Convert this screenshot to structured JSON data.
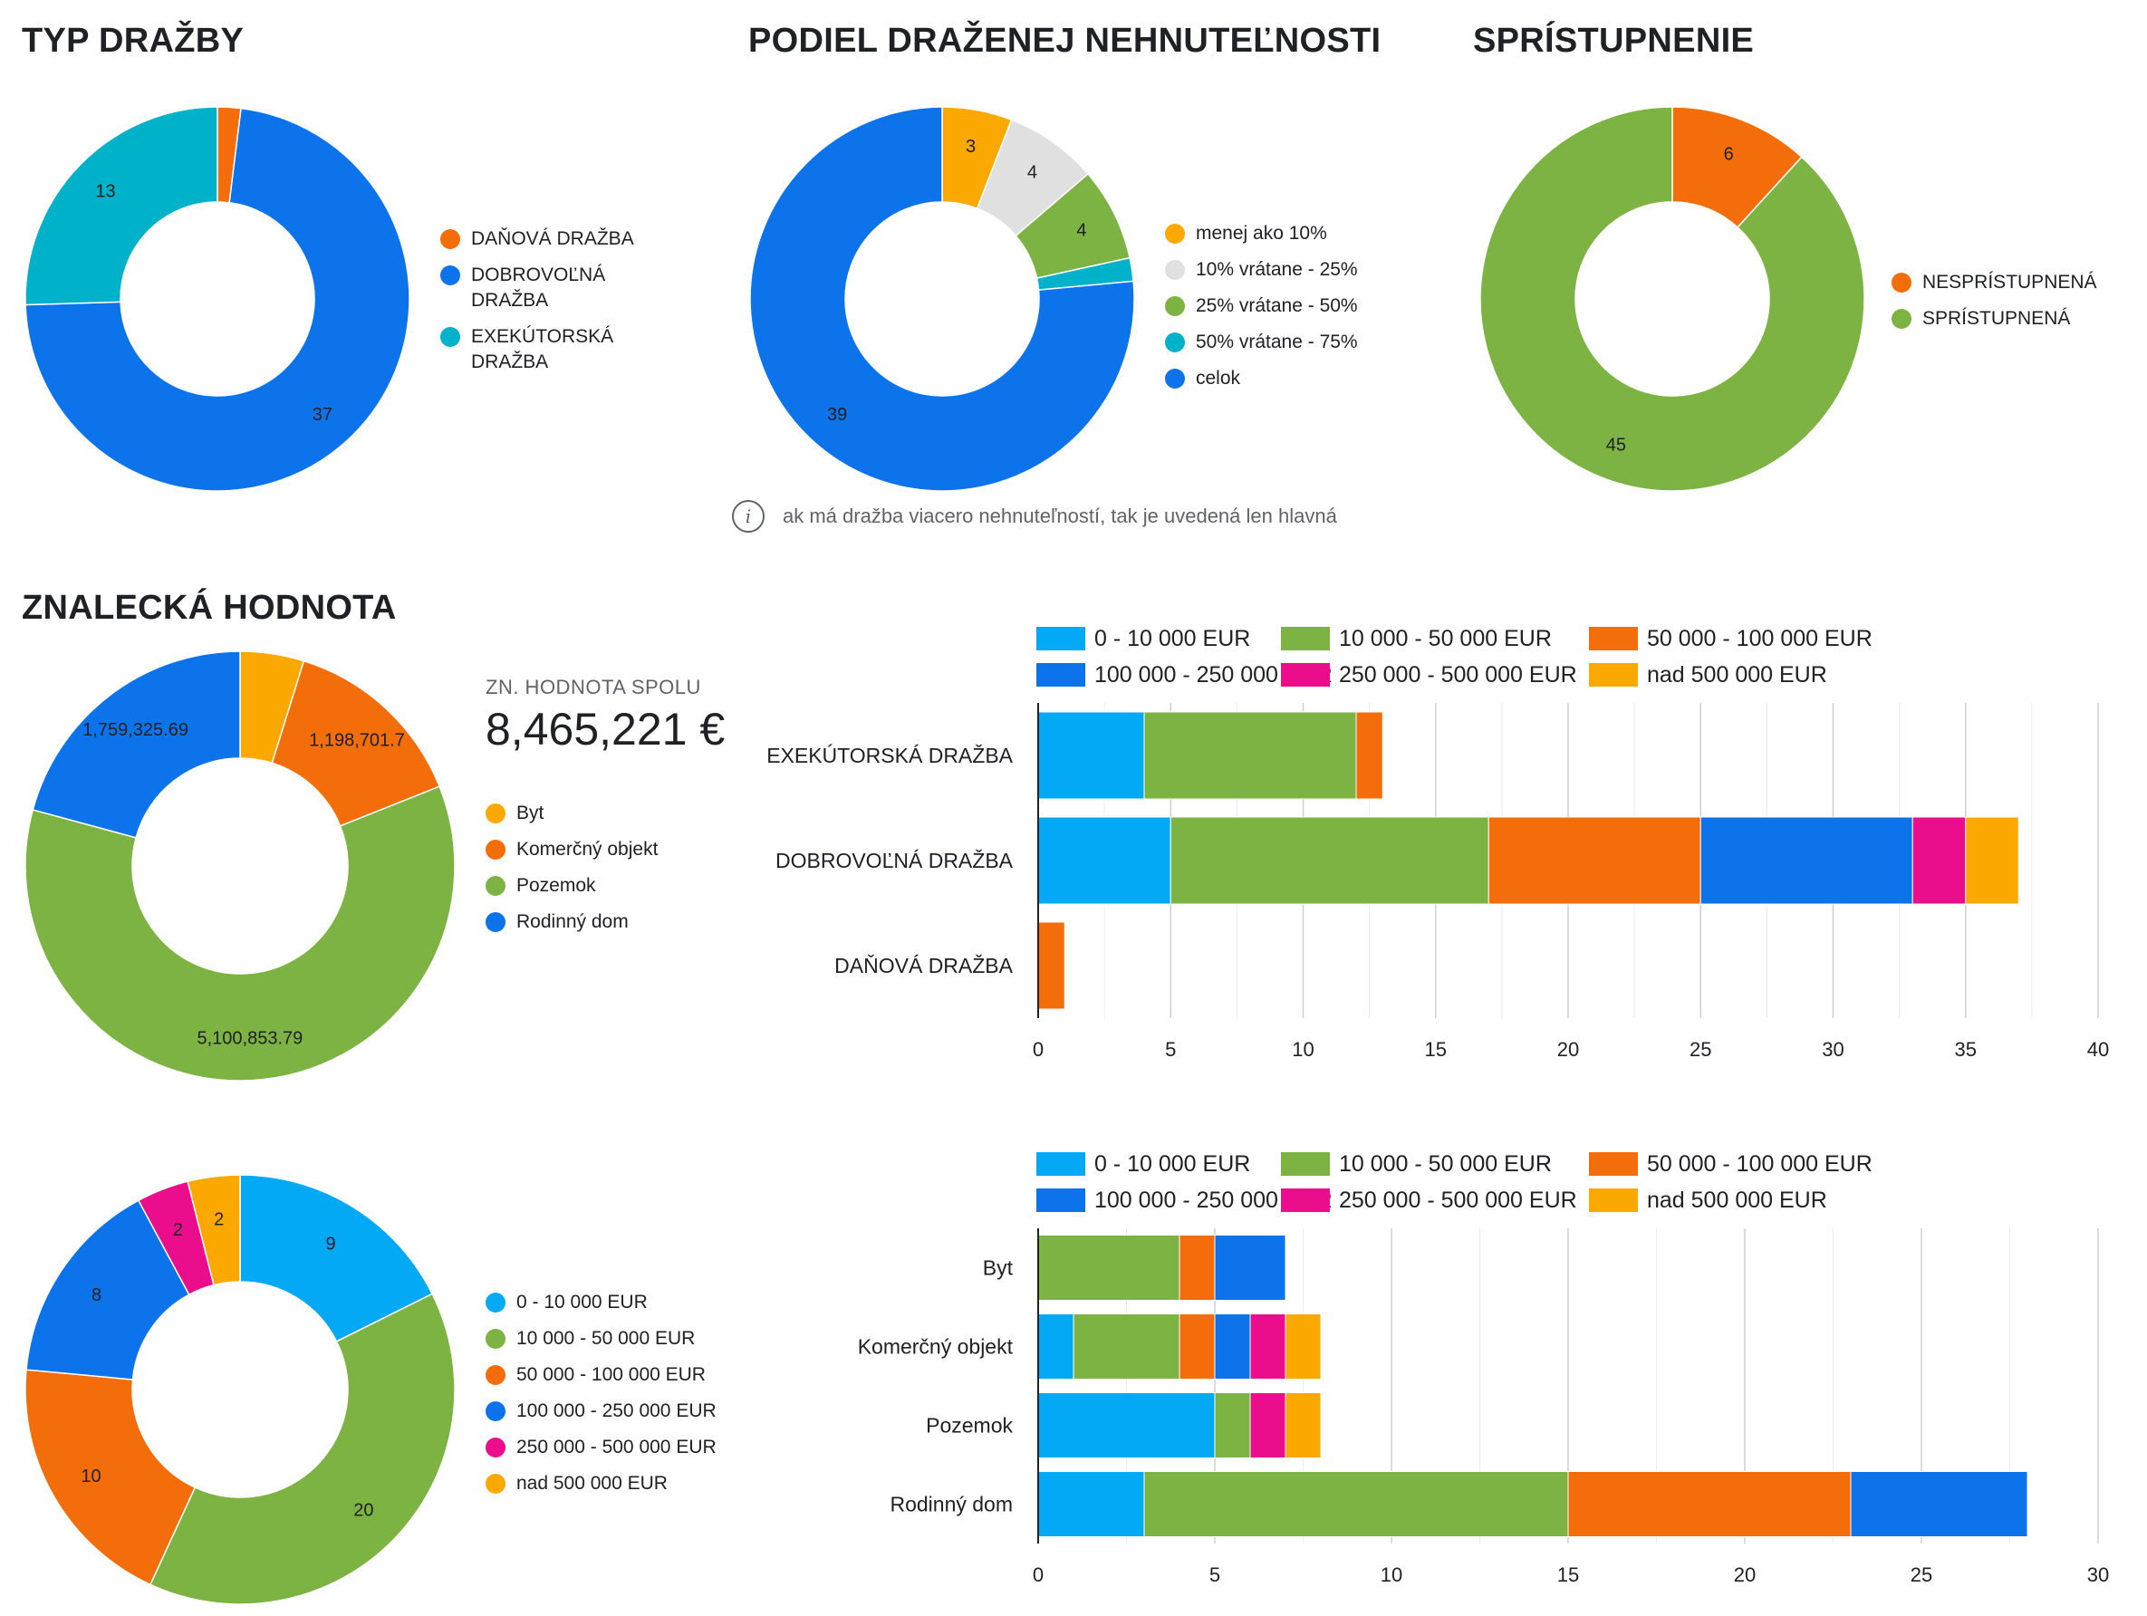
{
  "titles": {
    "typ": "TYP DRAŽBY",
    "podiel": "PODIEL DRAŽENEJ NEHNUTEĽNOSTI",
    "spristupnenie": "SPRÍSTUPNENIE",
    "znalecka": "ZNALECKÁ HODNOTA"
  },
  "note": "ak má dražba viacero nehnuteľností, tak je uvedená len hlavná",
  "note_icon": "info-icon",
  "scorecard": {
    "label": "ZN. HODNOTA SPOLU",
    "value": "8,465,221 €"
  },
  "chart_data": [
    {
      "id": "typ-drazby",
      "type": "pie",
      "categories": [
        "DAŇOVÁ DRAŽBA",
        "DOBROVOĽNÁ DRAŽBA",
        "EXEKÚTORSKÁ DRAŽBA"
      ],
      "values": [
        1,
        37,
        13
      ],
      "labels": [
        "",
        "37",
        "13"
      ],
      "colors": [
        "#f36e0a",
        "#0d73ea",
        "#00b1ca"
      ],
      "legend": "right"
    },
    {
      "id": "podiel",
      "type": "pie",
      "categories": [
        "menej ako 10%",
        "10% vrátane - 25%",
        "25% vrátane - 50%",
        "50% vrátane - 75%",
        "celok"
      ],
      "values": [
        3,
        4,
        4,
        1,
        39
      ],
      "labels": [
        "3",
        "4",
        "4",
        "",
        "39"
      ],
      "colors": [
        "#fba900",
        "#e0e0e0",
        "#7cb342",
        "#00b1ca",
        "#0d73ea"
      ],
      "legend": "right"
    },
    {
      "id": "spristupnenie",
      "type": "pie",
      "categories": [
        "NESPRÍSTUPNENÁ",
        "SPRÍSTUPNENÁ"
      ],
      "values": [
        6,
        45
      ],
      "labels": [
        "6",
        "45"
      ],
      "colors": [
        "#f36e0a",
        "#7cb342"
      ],
      "legend": "right"
    },
    {
      "id": "znalecka-hodnota",
      "type": "pie",
      "categories": [
        "Byt",
        "Komerčný objekt",
        "Pozemok",
        "Rodinný dom"
      ],
      "values": [
        406340.9,
        1198701.7,
        5100853.79,
        1759325.69
      ],
      "labels": [
        "",
        "1,198,701.7",
        "5,100,853.79",
        "1,759,325.69"
      ],
      "colors": [
        "#fba900",
        "#f36e0a",
        "#7cb342",
        "#0d73ea"
      ],
      "legend": "right"
    },
    {
      "id": "hodnota-intervaly",
      "type": "pie",
      "categories": [
        "0 - 10 000 EUR",
        "10 000 - 50 000 EUR",
        "50 000 - 100 000 EUR",
        "100 000 - 250 000 EUR",
        "250 000 - 500 000 EUR",
        "nad 500 000 EUR"
      ],
      "values": [
        9,
        20,
        10,
        8,
        2,
        2
      ],
      "labels": [
        "9",
        "20",
        "10",
        "8",
        "2",
        "2"
      ],
      "colors": [
        "#03a9f4",
        "#7cb342",
        "#f36e0a",
        "#0d73ea",
        "#ea0e8c",
        "#fba900"
      ],
      "legend": "right"
    },
    {
      "id": "typ-podla-hodnoty",
      "type": "bar",
      "orientation": "horizontal",
      "stacked": true,
      "categories": [
        "EXEKÚTORSKÁ DRAŽBA",
        "DOBROVOĽNÁ DRAŽBA",
        "DAŇOVÁ DRAŽBA"
      ],
      "series": [
        {
          "name": "0 - 10 000 EUR",
          "values": [
            4,
            5,
            0
          ],
          "color": "#03a9f4"
        },
        {
          "name": "10 000 - 50 000 EUR",
          "values": [
            8,
            12,
            0
          ],
          "color": "#7cb342"
        },
        {
          "name": "50 000 - 100 000 EUR",
          "values": [
            1,
            8,
            1
          ],
          "color": "#f36e0a"
        },
        {
          "name": "100 000 - 250 000 EUR",
          "values": [
            0,
            8,
            0
          ],
          "color": "#0d73ea"
        },
        {
          "name": "250 000 - 500 000 EUR",
          "values": [
            0,
            2,
            0
          ],
          "color": "#ea0e8c"
        },
        {
          "name": "nad 500 000 EUR",
          "values": [
            0,
            2,
            0
          ],
          "color": "#fba900"
        }
      ],
      "xlim": [
        0,
        40
      ],
      "xticks": [
        0,
        5,
        10,
        15,
        20,
        25,
        30,
        35,
        40
      ],
      "grid": true,
      "legend": "top"
    },
    {
      "id": "nehnutelnost-podla-hodnoty",
      "type": "bar",
      "orientation": "horizontal",
      "stacked": true,
      "categories": [
        "Byt",
        "Komerčný objekt",
        "Pozemok",
        "Rodinný dom"
      ],
      "series": [
        {
          "name": "0 - 10 000 EUR",
          "values": [
            0,
            1,
            5,
            3
          ],
          "color": "#03a9f4"
        },
        {
          "name": "10 000 - 50 000 EUR",
          "values": [
            4,
            3,
            1,
            12
          ],
          "color": "#7cb342"
        },
        {
          "name": "50 000 - 100 000 EUR",
          "values": [
            1,
            1,
            0,
            8
          ],
          "color": "#f36e0a"
        },
        {
          "name": "100 000 - 250 000 EUR",
          "values": [
            2,
            1,
            0,
            5
          ],
          "color": "#0d73ea"
        },
        {
          "name": "250 000 - 500 000 EUR",
          "values": [
            0,
            1,
            1,
            0
          ],
          "color": "#ea0e8c"
        },
        {
          "name": "nad 500 000 EUR",
          "values": [
            0,
            1,
            1,
            0
          ],
          "color": "#fba900"
        }
      ],
      "xlim": [
        0,
        30
      ],
      "xticks": [
        0,
        5,
        10,
        15,
        20,
        25,
        30
      ],
      "grid": true,
      "legend": "top"
    }
  ]
}
